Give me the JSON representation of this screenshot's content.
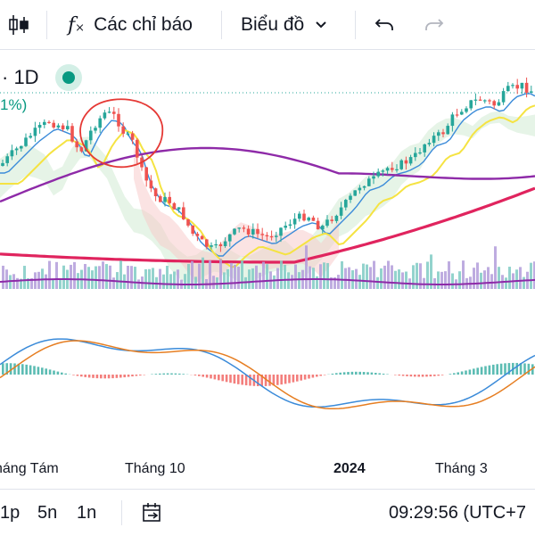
{
  "toolbar": {
    "indicators_label": "Các chỉ báo",
    "chart_type_label": "Biểu đồ",
    "icons": [
      "candle-icon",
      "fx-icon",
      "chevron-down-icon",
      "undo-icon",
      "redo-icon"
    ]
  },
  "symbol": {
    "timeframe_label": "· 1D",
    "change_label": "1%)"
  },
  "chart_data": {
    "type": "candlestick",
    "x_axis_labels": [
      "háng Tám",
      "Tháng 10",
      "2024",
      "Tháng 3"
    ],
    "bold_x_labels": [
      "2024"
    ],
    "panels": [
      "price",
      "volume",
      "macd"
    ],
    "annotation": "red hand-drawn circle around Tháng 9 price peak",
    "colors": {
      "up": "#26a69a",
      "down": "#ef5350",
      "ma_short": "#3b8bd9",
      "ma_mid": "#f5e342",
      "ma_long": "#8e2aa8",
      "ma_200": "#e0245e",
      "cloud_up": "#c8e6c9",
      "cloud_down": "#f8c8c8",
      "macd_line": "#3b8bd9",
      "signal_line": "#e67e22",
      "annotation": "#e53935"
    }
  },
  "bottom_bar": {
    "ranges": [
      "1p",
      "5n",
      "1n"
    ],
    "clock": "09:29:56 (UTC+7"
  }
}
